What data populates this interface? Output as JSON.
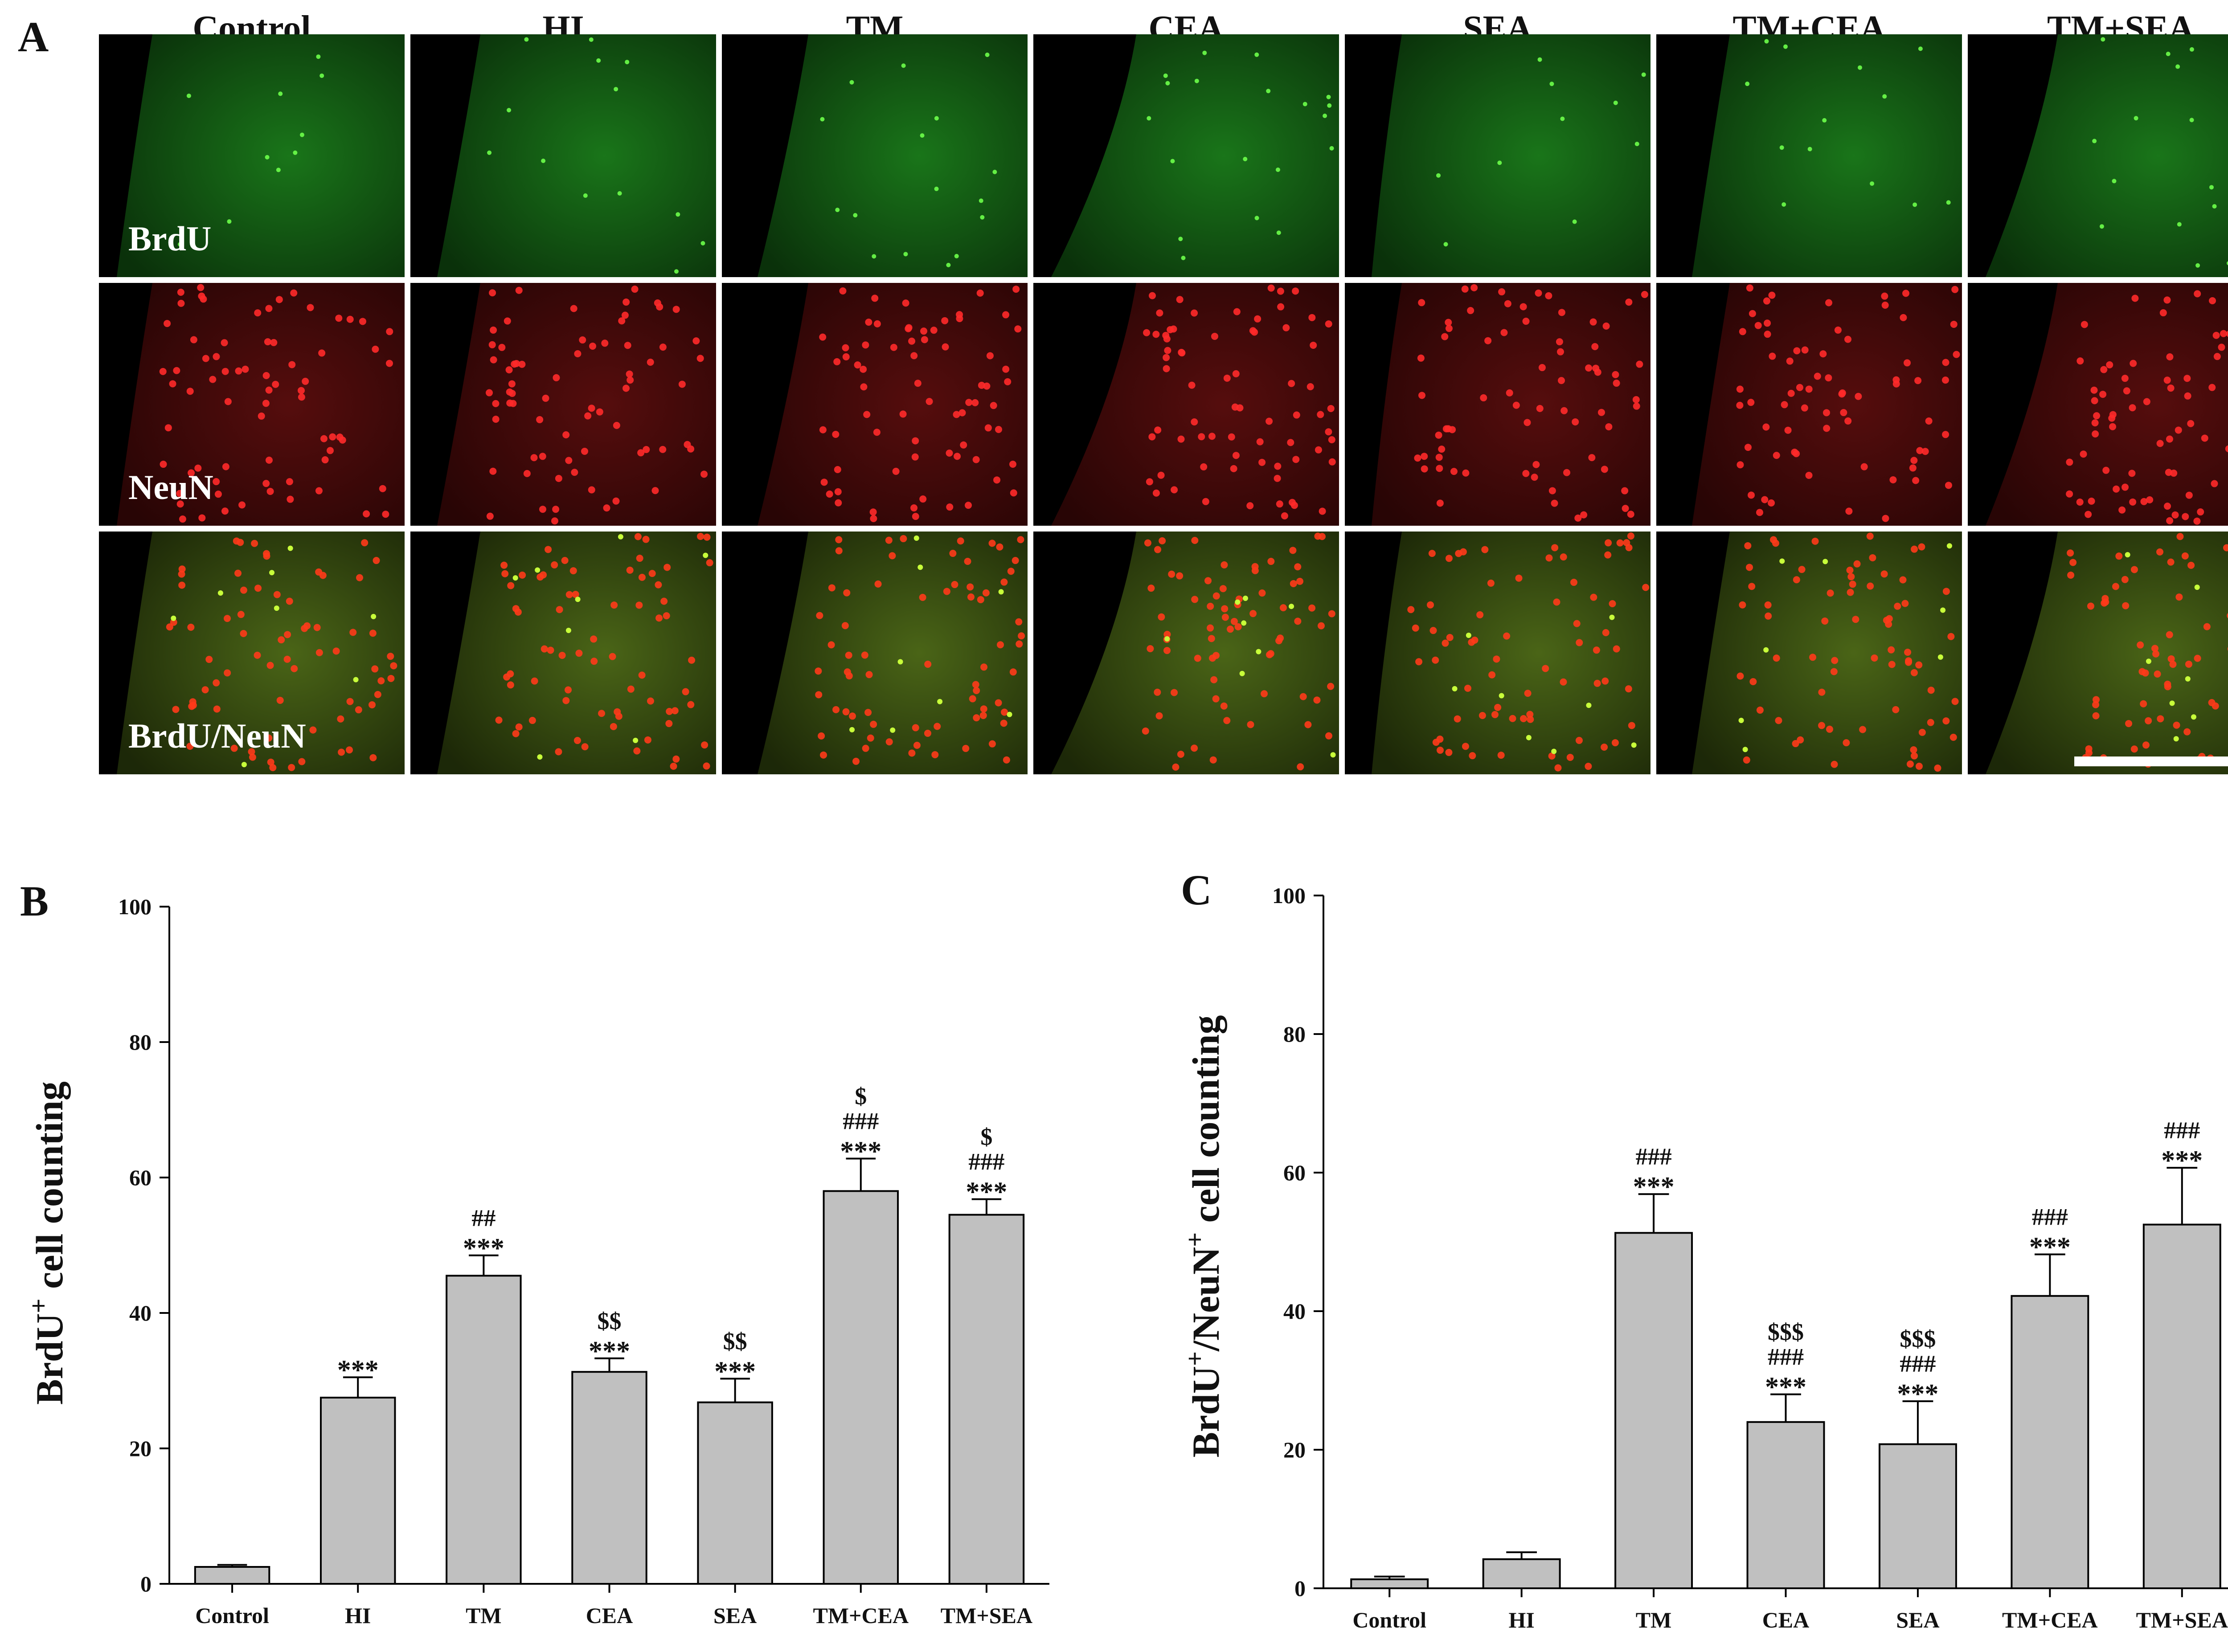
{
  "figure": {
    "panels": [
      "A",
      "B",
      "C"
    ],
    "micrographs": {
      "columns": [
        "Control",
        "HI",
        "TM",
        "CEA",
        "SEA",
        "TM+CEA",
        "TM+SEA"
      ],
      "rows": [
        "BrdU",
        "NeuN",
        "BrdU/NeuN"
      ],
      "row_colors": [
        "#1fa81f",
        "#e01818",
        "#c8a020"
      ]
    }
  },
  "chart_data": [
    {
      "panel": "B",
      "type": "bar",
      "categories": [
        "Control",
        "HI",
        "TM",
        "CEA",
        "SEA",
        "TM+CEA",
        "TM+SEA"
      ],
      "values": [
        2.5,
        27.5,
        45.5,
        31.3,
        26.8,
        58,
        54.5
      ],
      "errors": [
        0.3,
        3,
        3,
        2,
        3.5,
        4.8,
        2.3
      ],
      "annotations": [
        [],
        [
          "***"
        ],
        [
          "##",
          "***"
        ],
        [
          "$$",
          "***"
        ],
        [
          "$$",
          "***"
        ],
        [
          "$",
          "###",
          "***"
        ],
        [
          "$",
          "###",
          "***"
        ]
      ],
      "title": "",
      "xlabel": "",
      "ylabel": "BrdU",
      "ylabel_sup": "+",
      "ylabel_rest": " cell counting",
      "ylim": [
        0,
        100
      ],
      "yticks": [
        0,
        20,
        40,
        60,
        80,
        100
      ],
      "bar_color": "#c0c0c0",
      "grid": false
    },
    {
      "panel": "C",
      "type": "bar",
      "categories": [
        "Control",
        "HI",
        "TM",
        "CEA",
        "SEA",
        "TM+CEA",
        "TM+SEA"
      ],
      "values": [
        1.3,
        4.2,
        51.3,
        24,
        20.8,
        42.2,
        52.5
      ],
      "errors": [
        0.4,
        1,
        5.6,
        4,
        6.2,
        6,
        8.2
      ],
      "annotations": [
        [],
        [],
        [
          "###",
          "***"
        ],
        [
          "$$$",
          "###",
          "***"
        ],
        [
          "$$$",
          "###",
          "***"
        ],
        [
          "###",
          "***"
        ],
        [
          "###",
          "***"
        ]
      ],
      "title": "",
      "xlabel": "",
      "ylabel": "BrdU",
      "ylabel_sup": "+",
      "ylabel_mid": "/NeuN",
      "ylabel_sup2": "+",
      "ylabel_rest": " cell counting",
      "ylim": [
        0,
        100
      ],
      "yticks": [
        0,
        20,
        40,
        60,
        80,
        100
      ],
      "bar_color": "#c0c0c0",
      "grid": false
    }
  ]
}
